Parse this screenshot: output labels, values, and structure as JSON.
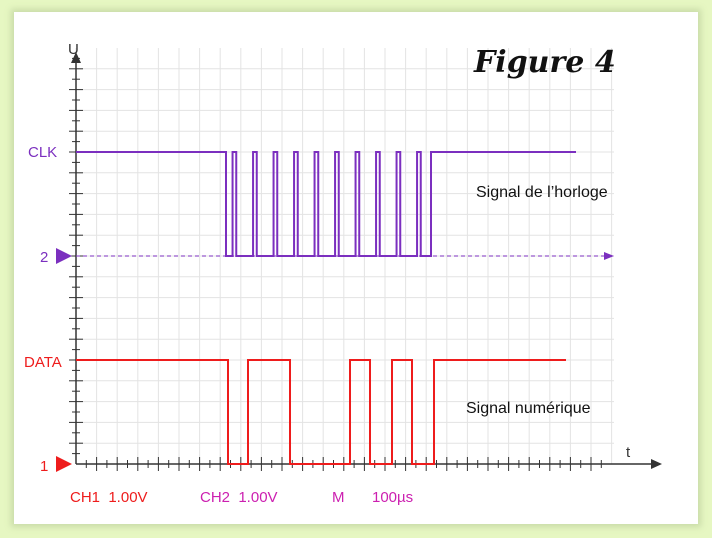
{
  "figure": {
    "title": "Figure 4",
    "y_axis_label": "U",
    "x_axis_label": "t",
    "channels": {
      "clk": {
        "name": "CLK",
        "marker": "2",
        "color": "#7b2fbf",
        "description": "Signal de l’horloge"
      },
      "data": {
        "name": "DATA",
        "marker": "1",
        "color": "#ee1c1c",
        "description": "Signal numérique"
      }
    },
    "readout": {
      "ch1": "CH1  1.00V",
      "ch2": "CH2  1.00V",
      "mode": "M",
      "timebase": "100µs"
    }
  },
  "signals": {
    "clk_pulse_count": 10,
    "data_bits": [
      1,
      0,
      1,
      1,
      0,
      0,
      0,
      1,
      0,
      1,
      0,
      1
    ]
  }
}
